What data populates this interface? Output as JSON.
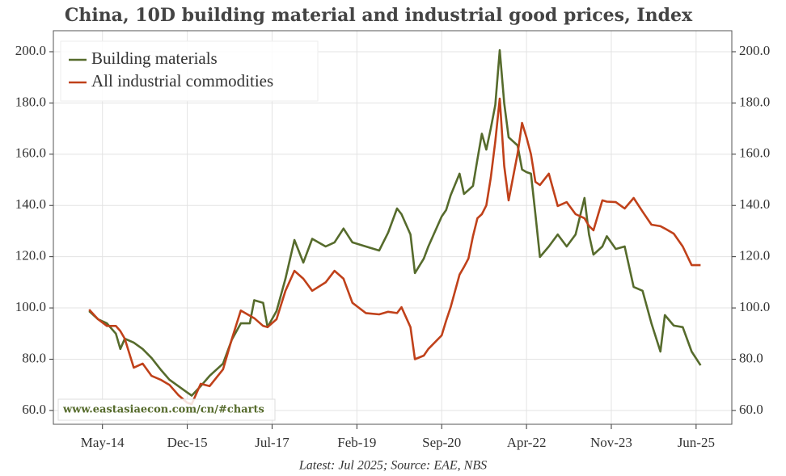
{
  "chart_data": {
    "type": "line",
    "title": "China, 10D building material and industrial good prices, Index",
    "footnote": "Latest: Jul 2025; Source: EAE, NBS",
    "watermark": "www.eastasiaecon.com/cn/#charts",
    "legend": "upper left",
    "grid": true,
    "x": [
      "2014-02",
      "2014-04",
      "2014-06",
      "2014-08",
      "2014-09",
      "2014-10",
      "2014-12",
      "2015-02",
      "2015-04",
      "2015-06",
      "2015-08",
      "2015-10",
      "2015-12",
      "2016-01",
      "2016-03",
      "2016-05",
      "2016-08",
      "2016-10",
      "2016-12",
      "2017-02",
      "2017-03",
      "2017-05",
      "2017-06",
      "2017-08",
      "2017-10",
      "2017-12",
      "2018-02",
      "2018-04",
      "2018-07",
      "2018-09",
      "2018-11",
      "2019-01",
      "2019-04",
      "2019-07",
      "2019-09",
      "2019-11",
      "2019-12",
      "2020-02",
      "2020-03",
      "2020-05",
      "2020-06",
      "2020-09",
      "2020-10",
      "2020-11",
      "2021-01",
      "2021-02",
      "2021-03",
      "2021-04",
      "2021-05",
      "2021-06",
      "2021-07",
      "2021-08",
      "2021-09",
      "2021-10",
      "2021-11",
      "2021-12",
      "2022-02",
      "2022-03",
      "2022-04",
      "2022-05",
      "2022-06",
      "2022-07",
      "2022-09",
      "2022-11",
      "2023-01",
      "2023-03",
      "2023-05",
      "2023-06",
      "2023-07",
      "2023-09",
      "2023-10",
      "2023-12",
      "2024-02",
      "2024-04",
      "2024-06",
      "2024-08",
      "2024-10",
      "2024-11",
      "2025-01",
      "2025-03",
      "2025-05",
      "2025-07"
    ],
    "series": [
      {
        "name": "Building materials",
        "color": "#566b2c",
        "values": [
          98.8,
          95.6,
          94,
          90,
          84,
          88,
          86.5,
          84,
          80.5,
          76,
          72,
          69.5,
          67,
          65.8,
          69.5,
          73.5,
          78.3,
          87.7,
          94,
          94,
          103,
          102,
          92.5,
          98.8,
          111.4,
          126.5,
          117.7,
          127,
          124,
          125.6,
          131,
          125.6,
          124,
          122.4,
          129.4,
          138.8,
          136.6,
          128.7,
          113.6,
          119.3,
          124,
          135.7,
          138.2,
          144,
          152.4,
          144.5,
          146,
          147.6,
          158,
          168,
          161.8,
          170,
          179.2,
          200.6,
          180,
          166.6,
          163.4,
          154,
          153,
          152.4,
          136.6,
          119.9,
          124,
          128.7,
          124,
          128.7,
          142.9,
          128.7,
          120.8,
          124,
          128,
          123,
          124,
          108.2,
          106.7,
          94,
          83,
          97.2,
          93.1,
          92.5,
          83,
          77.6
        ]
      },
      {
        "name": "All industrial commodities",
        "color": "#c0411a",
        "values": [
          99.4,
          95.6,
          93,
          93,
          91,
          88,
          76.7,
          78.3,
          73.5,
          72,
          70,
          66,
          63,
          62.5,
          70.4,
          69.5,
          76,
          88,
          99,
          97,
          96,
          93,
          92.5,
          95.6,
          106.7,
          114.5,
          111.4,
          106.7,
          110,
          114.5,
          111.4,
          102,
          98,
          97.5,
          98.5,
          98,
          100.3,
          92.5,
          80,
          81.4,
          84,
          89.3,
          95,
          100.3,
          113,
          116,
          119.3,
          128,
          135,
          136.6,
          140,
          150.8,
          165,
          181.7,
          155.5,
          142,
          160.3,
          172.2,
          166.6,
          160,
          149.2,
          148,
          152.4,
          139.8,
          141.3,
          136.6,
          135,
          132,
          130.3,
          142,
          141.5,
          141.3,
          138.8,
          142.9,
          137.6,
          132.5,
          131.9,
          131,
          129,
          124,
          116.7,
          116.7
        ]
      }
    ],
    "xlim": [
      "2013-06",
      "2026-02"
    ],
    "xticks": [
      {
        "value": "2014-05",
        "label": "May-14"
      },
      {
        "value": "2015-12",
        "label": "Dec-15"
      },
      {
        "value": "2017-07",
        "label": "Jul-17"
      },
      {
        "value": "2019-02",
        "label": "Feb-19"
      },
      {
        "value": "2020-09",
        "label": "Sep-20"
      },
      {
        "value": "2022-04",
        "label": "Apr-22"
      },
      {
        "value": "2023-11",
        "label": "Nov-23"
      },
      {
        "value": "2025-06",
        "label": "Jun-25"
      }
    ],
    "ylim": [
      54.6,
      208.2
    ],
    "yticks": [
      {
        "value": 60,
        "label": "60.0"
      },
      {
        "value": 80,
        "label": "80.0"
      },
      {
        "value": 100,
        "label": "100.0"
      },
      {
        "value": 120,
        "label": "120.0"
      },
      {
        "value": 140,
        "label": "140.0"
      },
      {
        "value": 160,
        "label": "160.0"
      },
      {
        "value": 180,
        "label": "180.0"
      },
      {
        "value": 200,
        "label": "200.0"
      }
    ],
    "y2lim": [
      54.6,
      208.2
    ],
    "y2ticks": [
      {
        "value": 60,
        "label": "60.0"
      },
      {
        "value": 80,
        "label": "80.0"
      },
      {
        "value": 100,
        "label": "100.0"
      },
      {
        "value": 120,
        "label": "120.0"
      },
      {
        "value": 140,
        "label": "140.0"
      },
      {
        "value": 160,
        "label": "160.0"
      },
      {
        "value": 180,
        "label": "180.0"
      },
      {
        "value": 200,
        "label": "200.0"
      }
    ]
  }
}
